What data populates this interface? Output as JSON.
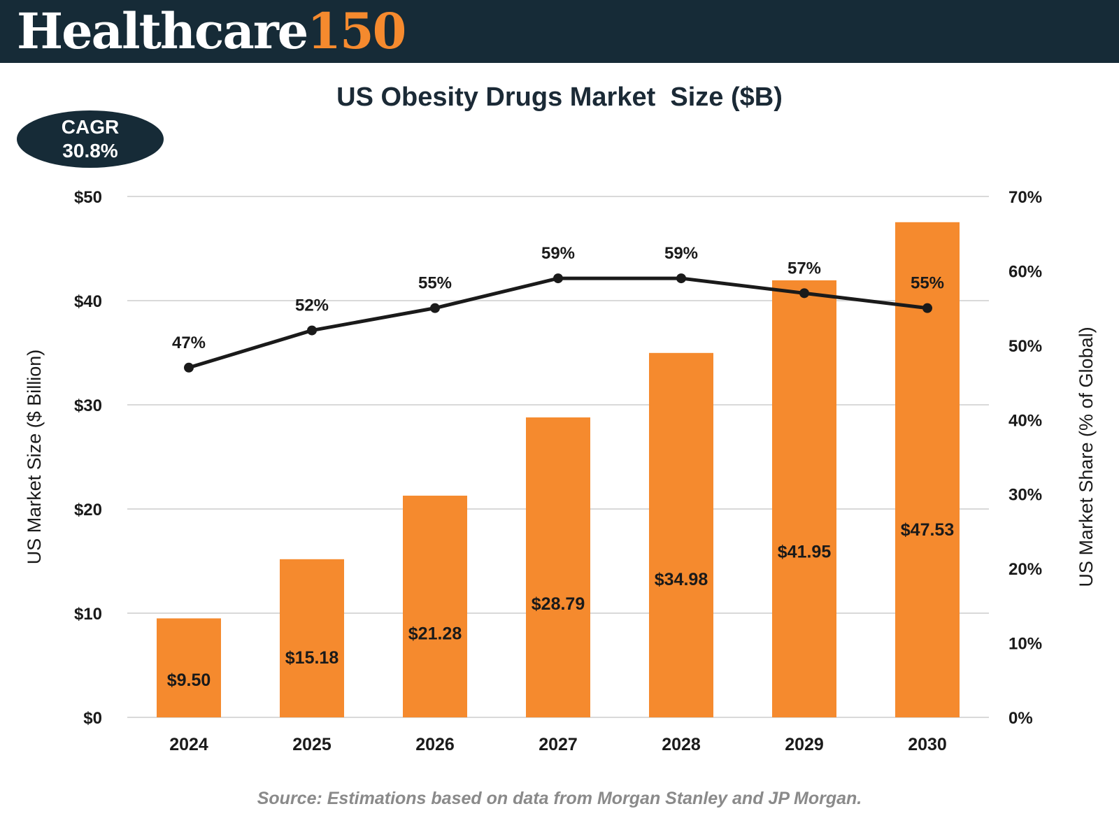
{
  "brand": {
    "name": "Healthcare",
    "number": "150"
  },
  "badge": {
    "label": "CAGR",
    "value": "30.8%"
  },
  "source": "Source: Estimations based on data from Morgan Stanley and JP Morgan.",
  "colors": {
    "header": "#162b37",
    "bar": "#f58a2e",
    "line": "#1a1a1a",
    "grid": "#d9d9d9",
    "accent": "#f58a2e"
  },
  "chart_data": {
    "type": "bar",
    "title": "US Obesity Drugs Market  Size ($B)",
    "categories": [
      "2024",
      "2025",
      "2026",
      "2027",
      "2028",
      "2029",
      "2030"
    ],
    "series": [
      {
        "type": "bar",
        "axis": "left",
        "values": [
          9.5,
          15.18,
          21.28,
          28.79,
          34.98,
          41.95,
          47.53
        ],
        "labels": [
          "$9.50",
          "$15.18",
          "$21.28",
          "$28.79",
          "$34.98",
          "$41.95",
          "$47.53"
        ]
      },
      {
        "type": "line",
        "axis": "right",
        "values": [
          47,
          52,
          55,
          59,
          59,
          57,
          55
        ],
        "labels": [
          "47%",
          "52%",
          "55%",
          "59%",
          "59%",
          "57%",
          "55%"
        ]
      }
    ],
    "ylabel": "US Market Size ($ Billion)",
    "ylabel_right": "US Market Share (% of Global)",
    "ylim": [
      0,
      50
    ],
    "ylim_right": [
      0,
      70
    ],
    "yticks": [
      "$0",
      "$10",
      "$20",
      "$30",
      "$40",
      "$50"
    ],
    "yticks_right": [
      "0%",
      "10%",
      "20%",
      "30%",
      "40%",
      "50%",
      "60%",
      "70%"
    ],
    "grid": true,
    "legend": "none"
  }
}
